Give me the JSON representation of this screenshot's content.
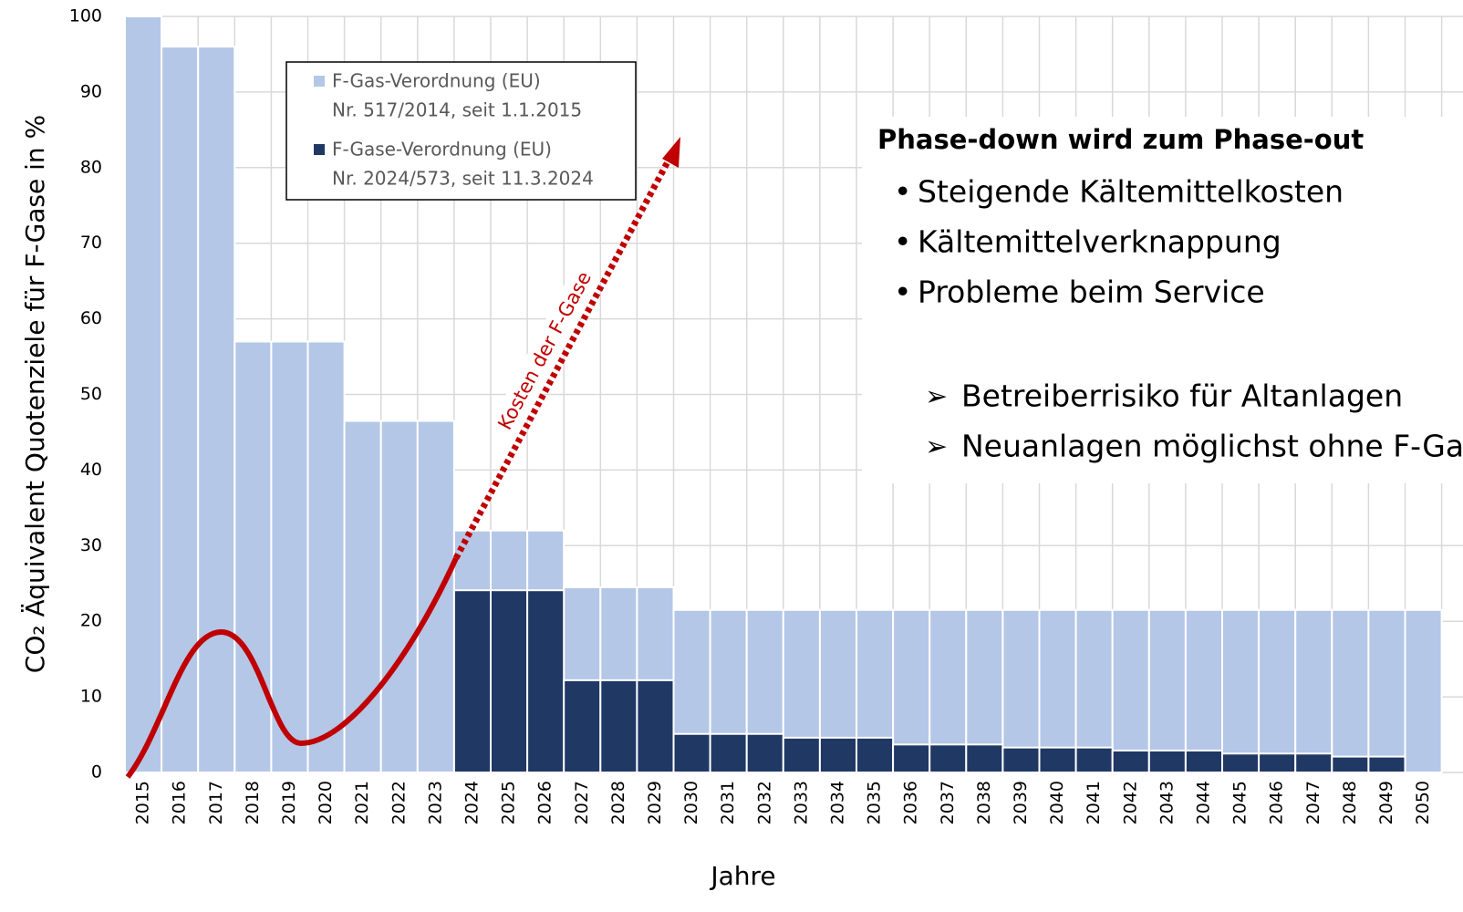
{
  "chart_data": {
    "type": "bar",
    "barmode": "overlay",
    "ylabel": "CO₂ Äquivalent Quotenziele für F-Gase in %",
    "xlabel": "Jahre",
    "categories": [
      "2015",
      "2016",
      "2017",
      "2018",
      "2019",
      "2020",
      "2021",
      "2022",
      "2023",
      "2024",
      "2025",
      "2026",
      "2027",
      "2028",
      "2029",
      "2030",
      "2031",
      "2032",
      "2033",
      "2034",
      "2035",
      "2036",
      "2037",
      "2038",
      "2039",
      "2040",
      "2041",
      "2042",
      "2043",
      "2044",
      "2045",
      "2046",
      "2047",
      "2048",
      "2049",
      "2050"
    ],
    "series": [
      {
        "name": [
          "F-Gas-Verordnung (EU)",
          "Nr. 517/2014, seit 1.1.2015"
        ],
        "color": "#b4c7e7",
        "values": [
          100,
          96,
          96,
          57,
          57,
          57,
          46.5,
          46.5,
          46.5,
          32,
          32,
          32,
          24.5,
          24.5,
          24.5,
          21.5,
          21.5,
          21.5,
          21.5,
          21.5,
          21.5,
          21.5,
          21.5,
          21.5,
          21.5,
          21.5,
          21.5,
          21.5,
          21.5,
          21.5,
          21.5,
          21.5,
          21.5,
          21.5,
          21.5,
          21.5
        ]
      },
      {
        "name": [
          "F-Gase-Verordnung (EU)",
          "Nr. 2024/573, seit 11.3.2024"
        ],
        "color": "#203864",
        "values": [
          null,
          null,
          null,
          null,
          null,
          null,
          null,
          null,
          null,
          24.1,
          24.1,
          24.1,
          12.2,
          12.2,
          12.2,
          5.1,
          5.1,
          5.1,
          4.6,
          4.6,
          4.6,
          3.7,
          3.7,
          3.7,
          3.3,
          3.3,
          3.3,
          2.9,
          2.9,
          2.9,
          2.5,
          2.5,
          2.5,
          2.1,
          2.1,
          0
        ]
      }
    ],
    "ylim": [
      0,
      100
    ],
    "yticks": [
      0,
      10,
      20,
      30,
      40,
      50,
      60,
      70,
      80,
      90,
      100
    ],
    "grid": true,
    "annotations": {
      "arrow_label": "Kosten der F-Gase",
      "heading": "Phase-down wird zum Phase-out",
      "bullets": [
        "Steigende Kältemittelkosten",
        "Kältemittelverknappung",
        "Probleme beim Service"
      ],
      "conclusions": [
        "Betreiberrisiko für Altanlagen",
        "Neuanlagen möglichst ohne F-Gase"
      ]
    }
  }
}
